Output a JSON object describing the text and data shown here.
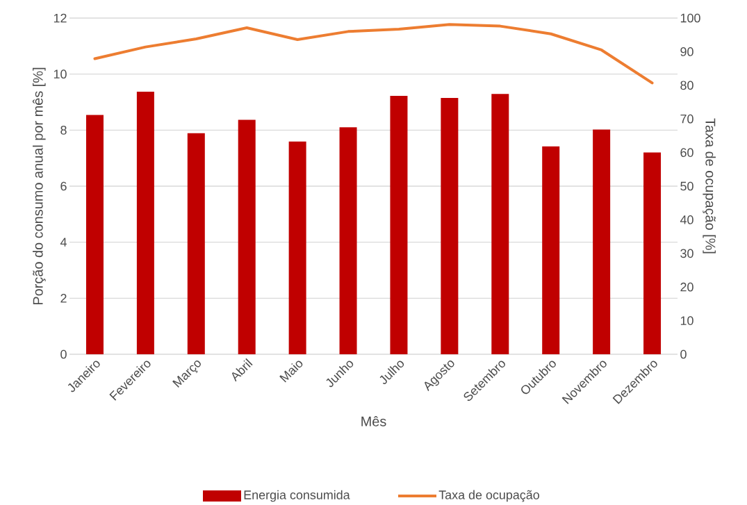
{
  "chart_data": {
    "type": "bar",
    "xlabel": "Mês",
    "ylabel": "Porção do consumo anual por mês [%]",
    "y2label": "Taxa de ocupação [%]",
    "categories": [
      "Janeiro",
      "Fevereiro",
      "Março",
      "Abril",
      "Maio",
      "Junho",
      "Julho",
      "Agosto",
      "Setembro",
      "Outubro",
      "Novembro",
      "Dezembro"
    ],
    "series": [
      {
        "name": "Energia consumida",
        "color": "#c00000",
        "values": [
          8.54,
          9.37,
          7.89,
          8.37,
          7.59,
          8.1,
          9.22,
          9.15,
          9.29,
          7.42,
          8.02,
          7.2
        ]
      },
      {
        "name": "Taxa de ocupação",
        "type": "line",
        "axis": "y2",
        "color": "#ed7d31",
        "values": [
          87.9,
          91.4,
          93.8,
          97.1,
          93.6,
          96.0,
          96.7,
          98.1,
          97.6,
          95.3,
          90.5,
          80.7
        ]
      }
    ],
    "ylim": [
      0,
      12
    ],
    "yticks": [
      0,
      2,
      4,
      6,
      8,
      10,
      12
    ],
    "y2lim": [
      0,
      100
    ],
    "y2ticks": [
      0,
      10,
      20,
      30,
      40,
      50,
      60,
      70,
      80,
      90,
      100
    ],
    "grid": "y",
    "legend": "bottom"
  }
}
